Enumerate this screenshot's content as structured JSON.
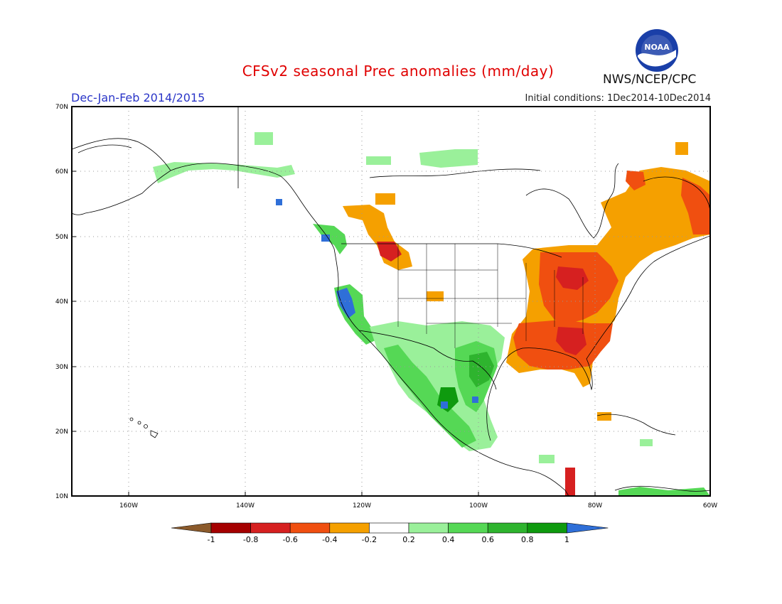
{
  "title": "CFSv2 seasonal Prec anomalies (mm/day)",
  "season": "Dec-Jan-Feb 2014/2015",
  "initial_conditions": "Initial conditions: 1Dec2014-10Dec2014",
  "agency": "NWS/NCEP/CPC",
  "logo": {
    "icon": "noaa-logo",
    "text": "NOAA"
  },
  "map": {
    "lat_labels": [
      "70N",
      "60N",
      "50N",
      "40N",
      "30N",
      "20N",
      "10N"
    ],
    "lon_labels": [
      "160W",
      "140W",
      "120W",
      "100W",
      "80W",
      "60W"
    ]
  },
  "legend": {
    "tick_labels": [
      "-1",
      "-0.8",
      "-0.6",
      "-0.4",
      "-0.2",
      "0.2",
      "0.4",
      "0.6",
      "0.8",
      "1"
    ],
    "colors": [
      "#8b5a2b",
      "#a50000",
      "#d62020",
      "#f04f10",
      "#f5a000",
      "#ffffff",
      "#9af09a",
      "#55d855",
      "#2eb42e",
      "#0e9a0e",
      "#2f6fd8"
    ]
  },
  "colors": {
    "title": "#e00000",
    "season": "#2a35c8",
    "land_outline": "#000000"
  }
}
